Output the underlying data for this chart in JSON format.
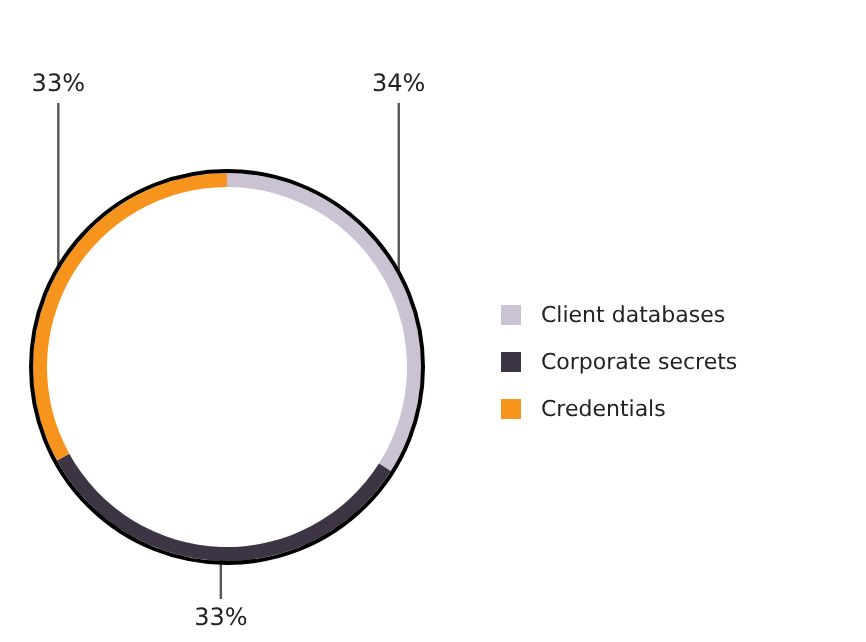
{
  "chart_data": {
    "type": "donut",
    "categories": [
      "Client databases",
      "Corporate secrets",
      "Credentials"
    ],
    "values": [
      34,
      33,
      33
    ],
    "colors": [
      "#cbc3d3",
      "#3d3444",
      "#f7941d"
    ],
    "value_labels": [
      "34%",
      "33%",
      "33%"
    ],
    "legend": "right"
  }
}
